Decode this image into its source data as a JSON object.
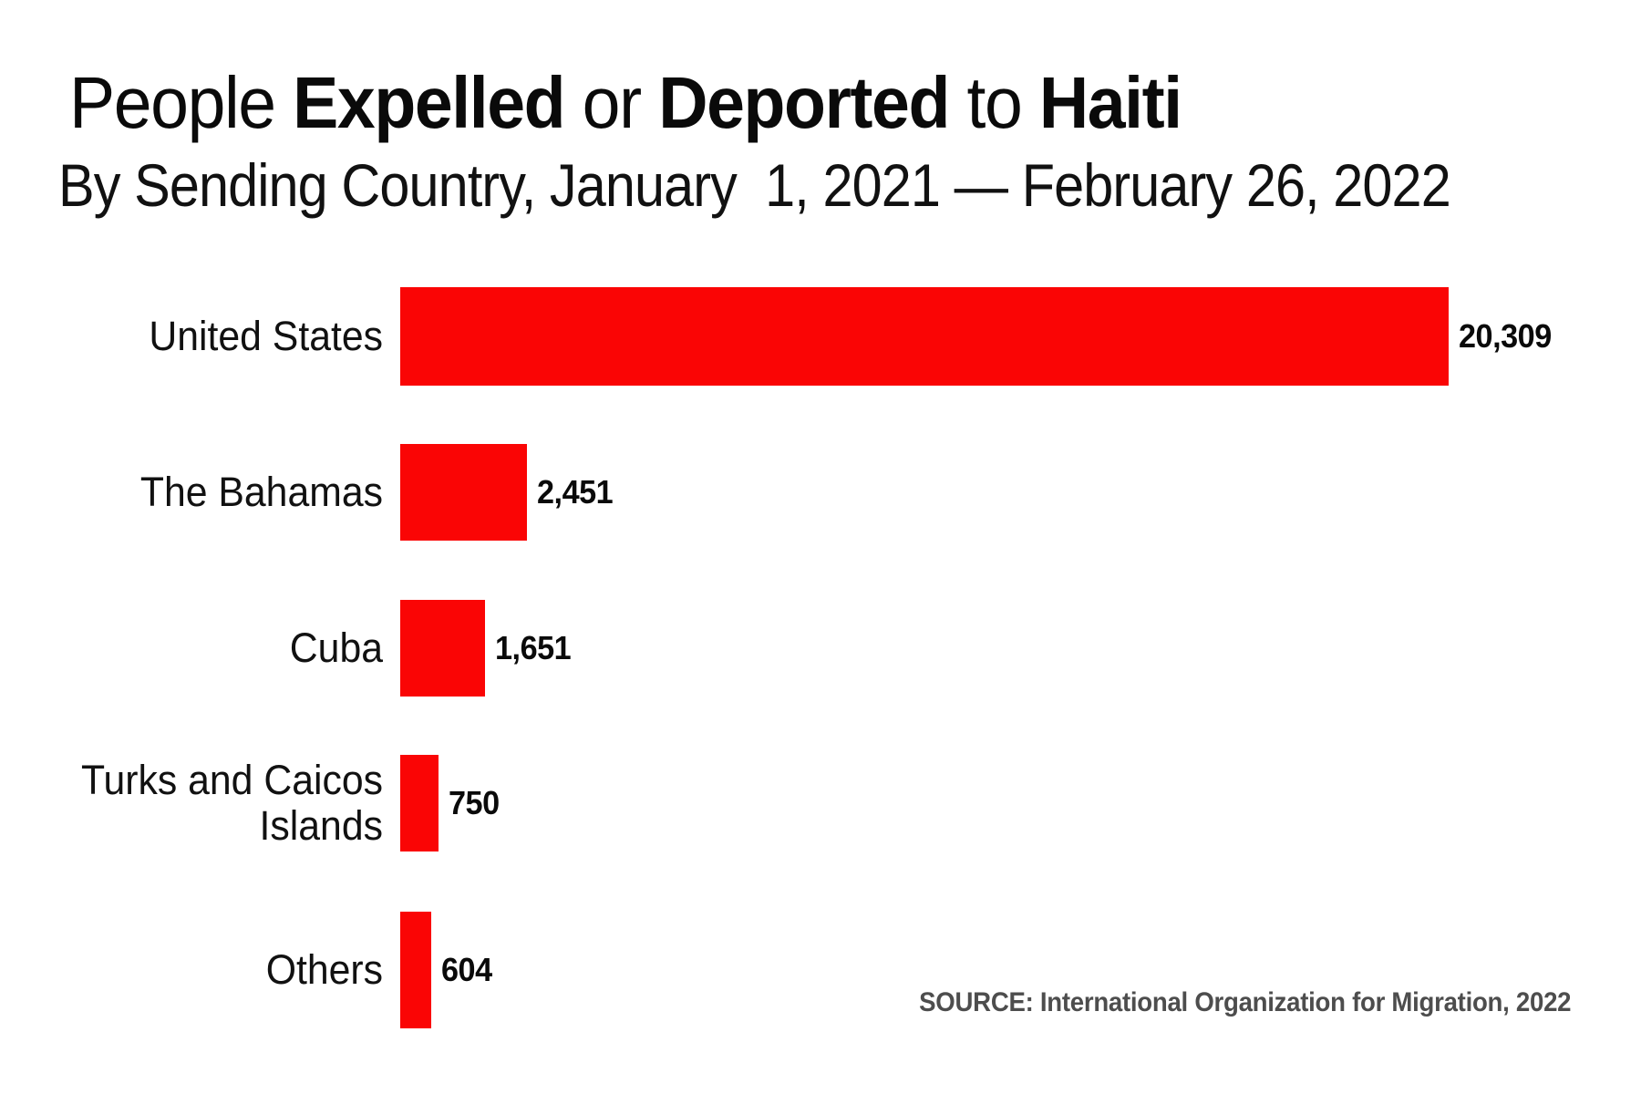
{
  "title": {
    "part1": "People ",
    "bold1": "Expelled",
    "part2": " or ",
    "bold2": "Deported",
    "part3": " to ",
    "bold3": "Haiti"
  },
  "subtitle": "By Sending Country, January  1, 2021 — February 26, 2022",
  "source": "SOURCE: International Organization for Migration, 2022",
  "colors": {
    "bar": "#fa0505",
    "title_text": "#0a0a0a",
    "label_text": "#111111",
    "source_text": "#4d4d4d",
    "background": "#ffffff"
  },
  "chart_data": {
    "type": "bar",
    "orientation": "horizontal",
    "title": "People Expelled or Deported to Haiti",
    "subtitle": "By Sending Country, January 1, 2021 — February 26, 2022",
    "xlabel": "",
    "ylabel": "",
    "xlim": [
      0,
      20309
    ],
    "grid": false,
    "legend": false,
    "categories": [
      "United States",
      "The Bahamas",
      "Cuba",
      "Turks and Caicos Islands",
      "Others"
    ],
    "values": [
      20309,
      2451,
      1651,
      750,
      604
    ],
    "value_labels": [
      "20,309",
      "2,451",
      "1,651",
      "750",
      "604"
    ],
    "rows": [
      {
        "label": "United States",
        "display_label": "United States",
        "value": 20309,
        "value_label": "20,309"
      },
      {
        "label": "The Bahamas",
        "display_label": "The Bahamas",
        "value": 2451,
        "value_label": "2,451"
      },
      {
        "label": "Cuba",
        "display_label": "Cuba",
        "value": 1651,
        "value_label": "1,651"
      },
      {
        "label": "Turks and Caicos Islands",
        "display_label": "Turks and Caicos\nIslands",
        "value": 750,
        "value_label": "750"
      },
      {
        "label": "Others",
        "display_label": "Others",
        "value": 604,
        "value_label": "604"
      }
    ]
  }
}
